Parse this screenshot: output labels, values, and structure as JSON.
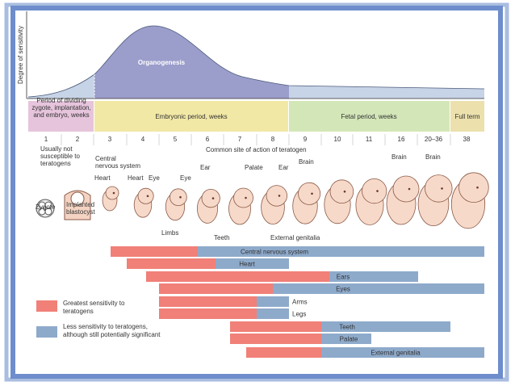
{
  "axis_label": "Degree of sensitivity",
  "curve_label": "Organogenesis",
  "periods": [
    [
      "Period of dividing",
      "zygote, implantation,",
      "and embryo, weeks"
    ],
    [
      "Embryonic period, weeks"
    ],
    [
      "Fetal period, weeks"
    ],
    [
      "Full term"
    ]
  ],
  "weeks": [
    "1",
    "2",
    "3",
    "4",
    "5",
    "6",
    "7",
    "8",
    "9",
    "10",
    "11",
    "16",
    "20–36",
    "38"
  ],
  "annotations": [
    [
      "Usually not",
      "susceptible to",
      "teratogens"
    ],
    [
      "Common site of action of teratogen"
    ],
    [
      "Central",
      "nervous system"
    ],
    [
      "Heart"
    ],
    [
      "Heart"
    ],
    [
      "Eye"
    ],
    [
      "Eye"
    ],
    [
      "Ear"
    ],
    [
      "Palate"
    ],
    [
      "Ear"
    ],
    [
      "Brain"
    ],
    [
      "Brain"
    ],
    [
      "Brain"
    ],
    [
      "Zygote"
    ],
    [
      "Implanted",
      "blastocyst"
    ],
    [
      "Limbs"
    ],
    [
      "Teeth"
    ],
    [
      "External genitalia"
    ]
  ],
  "bars": [
    "Central nervous system",
    "Heart",
    "Ears",
    "Eyes",
    "Arms",
    "Legs",
    "Teeth",
    "Palate",
    "External genitalia"
  ],
  "legend": [
    [
      "Greatest sensitivity to",
      "teratogens"
    ],
    [
      "Less sensitivity to teratogens,",
      "although still potentially significant"
    ]
  ]
}
